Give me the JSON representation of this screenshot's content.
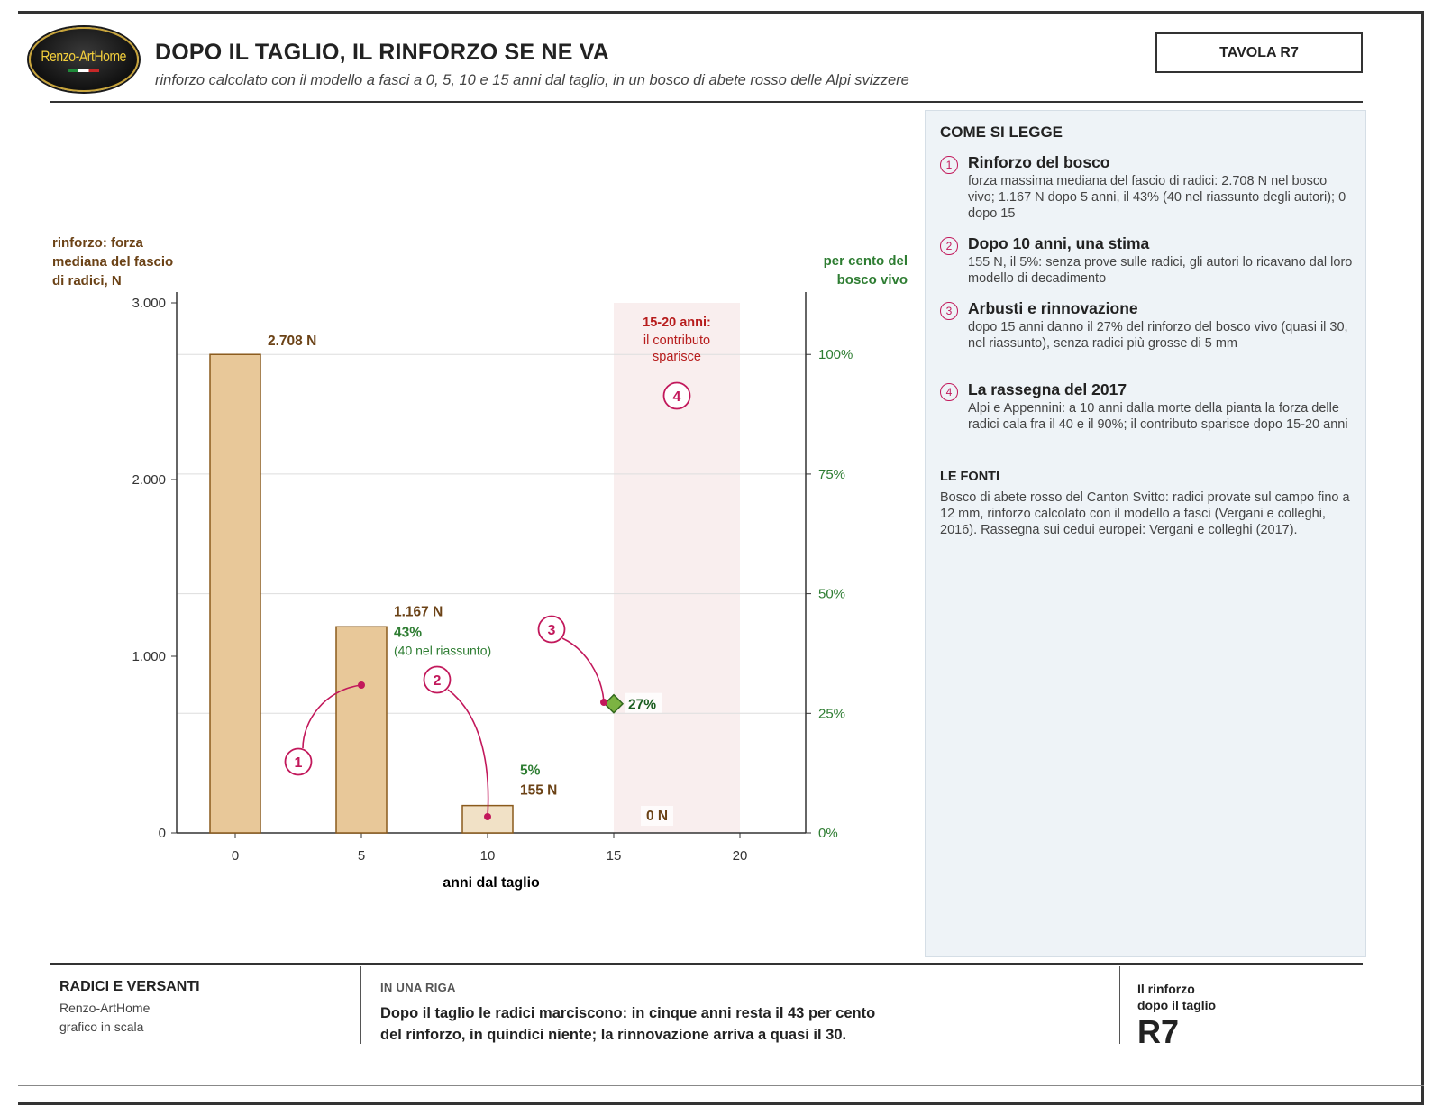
{
  "header": {
    "logo_text": "Renzo-ArtHome",
    "title": "DOPO IL TAGLIO, IL RINFORZO SE NE VA",
    "subtitle": "rinforzo calcolato con il modello a fasci a 0, 5, 10 e 15 anni dal taglio, in un bosco di abete rosso delle Alpi svizzere",
    "plate": "TAVOLA R7"
  },
  "colors": {
    "bar_fill": "#e8c899",
    "bar_fill_light": "#f1e1c6",
    "bar_stroke": "#8a5a1c",
    "brown_text": "#6b4216",
    "green_text": "#2e7d32",
    "marker": "#c2185b",
    "shade": "#f9eeee",
    "diamond": "#7cb342"
  },
  "chart_data": {
    "type": "bar",
    "title": "",
    "xlabel": "anni dal taglio",
    "ylabel": "rinforzo: forza mediana del fascio di radici, N",
    "y2label": "per cento del bosco vivo",
    "xlim": [
      -2,
      23
    ],
    "ylim": [
      0,
      3000
    ],
    "y2lim": [
      0,
      113
    ],
    "x_ticks": [
      "0",
      "5",
      "10",
      "15",
      "20"
    ],
    "y_ticks": [
      "0",
      "1.000",
      "2.000",
      "3.000"
    ],
    "y2_ticks": [
      "0%",
      "25%",
      "50%",
      "75%",
      "100%"
    ],
    "grid": "horizontal (right axis)",
    "bars": [
      {
        "x": 0,
        "value": 2708,
        "label": "2.708 N",
        "percent": 100
      },
      {
        "x": 5,
        "value": 1167,
        "label": "1.167 N",
        "percent": 43,
        "percent_label": "43%",
        "note": "(40 nel riassunto)"
      },
      {
        "x": 10,
        "value": 155,
        "label": "155 N",
        "percent": 5,
        "percent_label": "5%",
        "estimated": true
      },
      {
        "x": 15,
        "value": 0,
        "label": "0 N"
      }
    ],
    "point": {
      "x": 15,
      "percent": 27,
      "label": "27%"
    },
    "shaded_band": {
      "x": [
        15,
        20
      ],
      "label_bold": "15-20 anni:",
      "label_lines": [
        "il contributo",
        "sparisce"
      ]
    }
  },
  "panel": {
    "heading": "COME SI LEGGE",
    "notes": [
      {
        "num": "1",
        "title": "Rinforzo del bosco",
        "body": "forza massima mediana del fascio di radici: 2.708 N nel bosco vivo; 1.167 N dopo 5 anni, il 43% (40 nel riassunto degli autori); 0 dopo 15"
      },
      {
        "num": "2",
        "title": "Dopo 10 anni, una stima",
        "body": "155 N, il 5%: senza prove sulle radici, gli autori lo ricavano dal loro modello di decadimento"
      },
      {
        "num": "3",
        "title": "Arbusti e rinnovazione",
        "body": "dopo 15 anni danno il 27% del rinforzo del bosco vivo (quasi il 30, nel riassunto), senza radici più grosse di 5 mm"
      },
      {
        "num": "4",
        "title": "La rassegna del 2017",
        "body": "Alpi e Appennini: a 10 anni dalla morte della pianta la forza delle radici cala fra il 40 e il 90%; il contributo sparisce dopo 15-20 anni"
      }
    ],
    "sources_heading": "LE FONTI",
    "sources_body": "Bosco di abete rosso del Canton Svitto: radici provate sul campo fino a 12 mm, rinforzo calcolato con il modello a fasci (Vergani e colleghi, 2016). Rassegna sui cedui europei: Vergani e colleghi (2017)."
  },
  "footer": {
    "section": "RADICI E VERSANTI",
    "author": "Renzo-ArtHome",
    "kind": "grafico in scala",
    "riga_heading": "IN UNA RIGA",
    "riga_line1": "Dopo il taglio le radici marciscono: in cinque anni resta il 43 per cento",
    "riga_line2": "del rinforzo, in quindici niente; la rinnovazione arriva a quasi il 30.",
    "ref_line1": "Il rinforzo",
    "ref_line2": "dopo il taglio",
    "ref_code": "R7"
  }
}
